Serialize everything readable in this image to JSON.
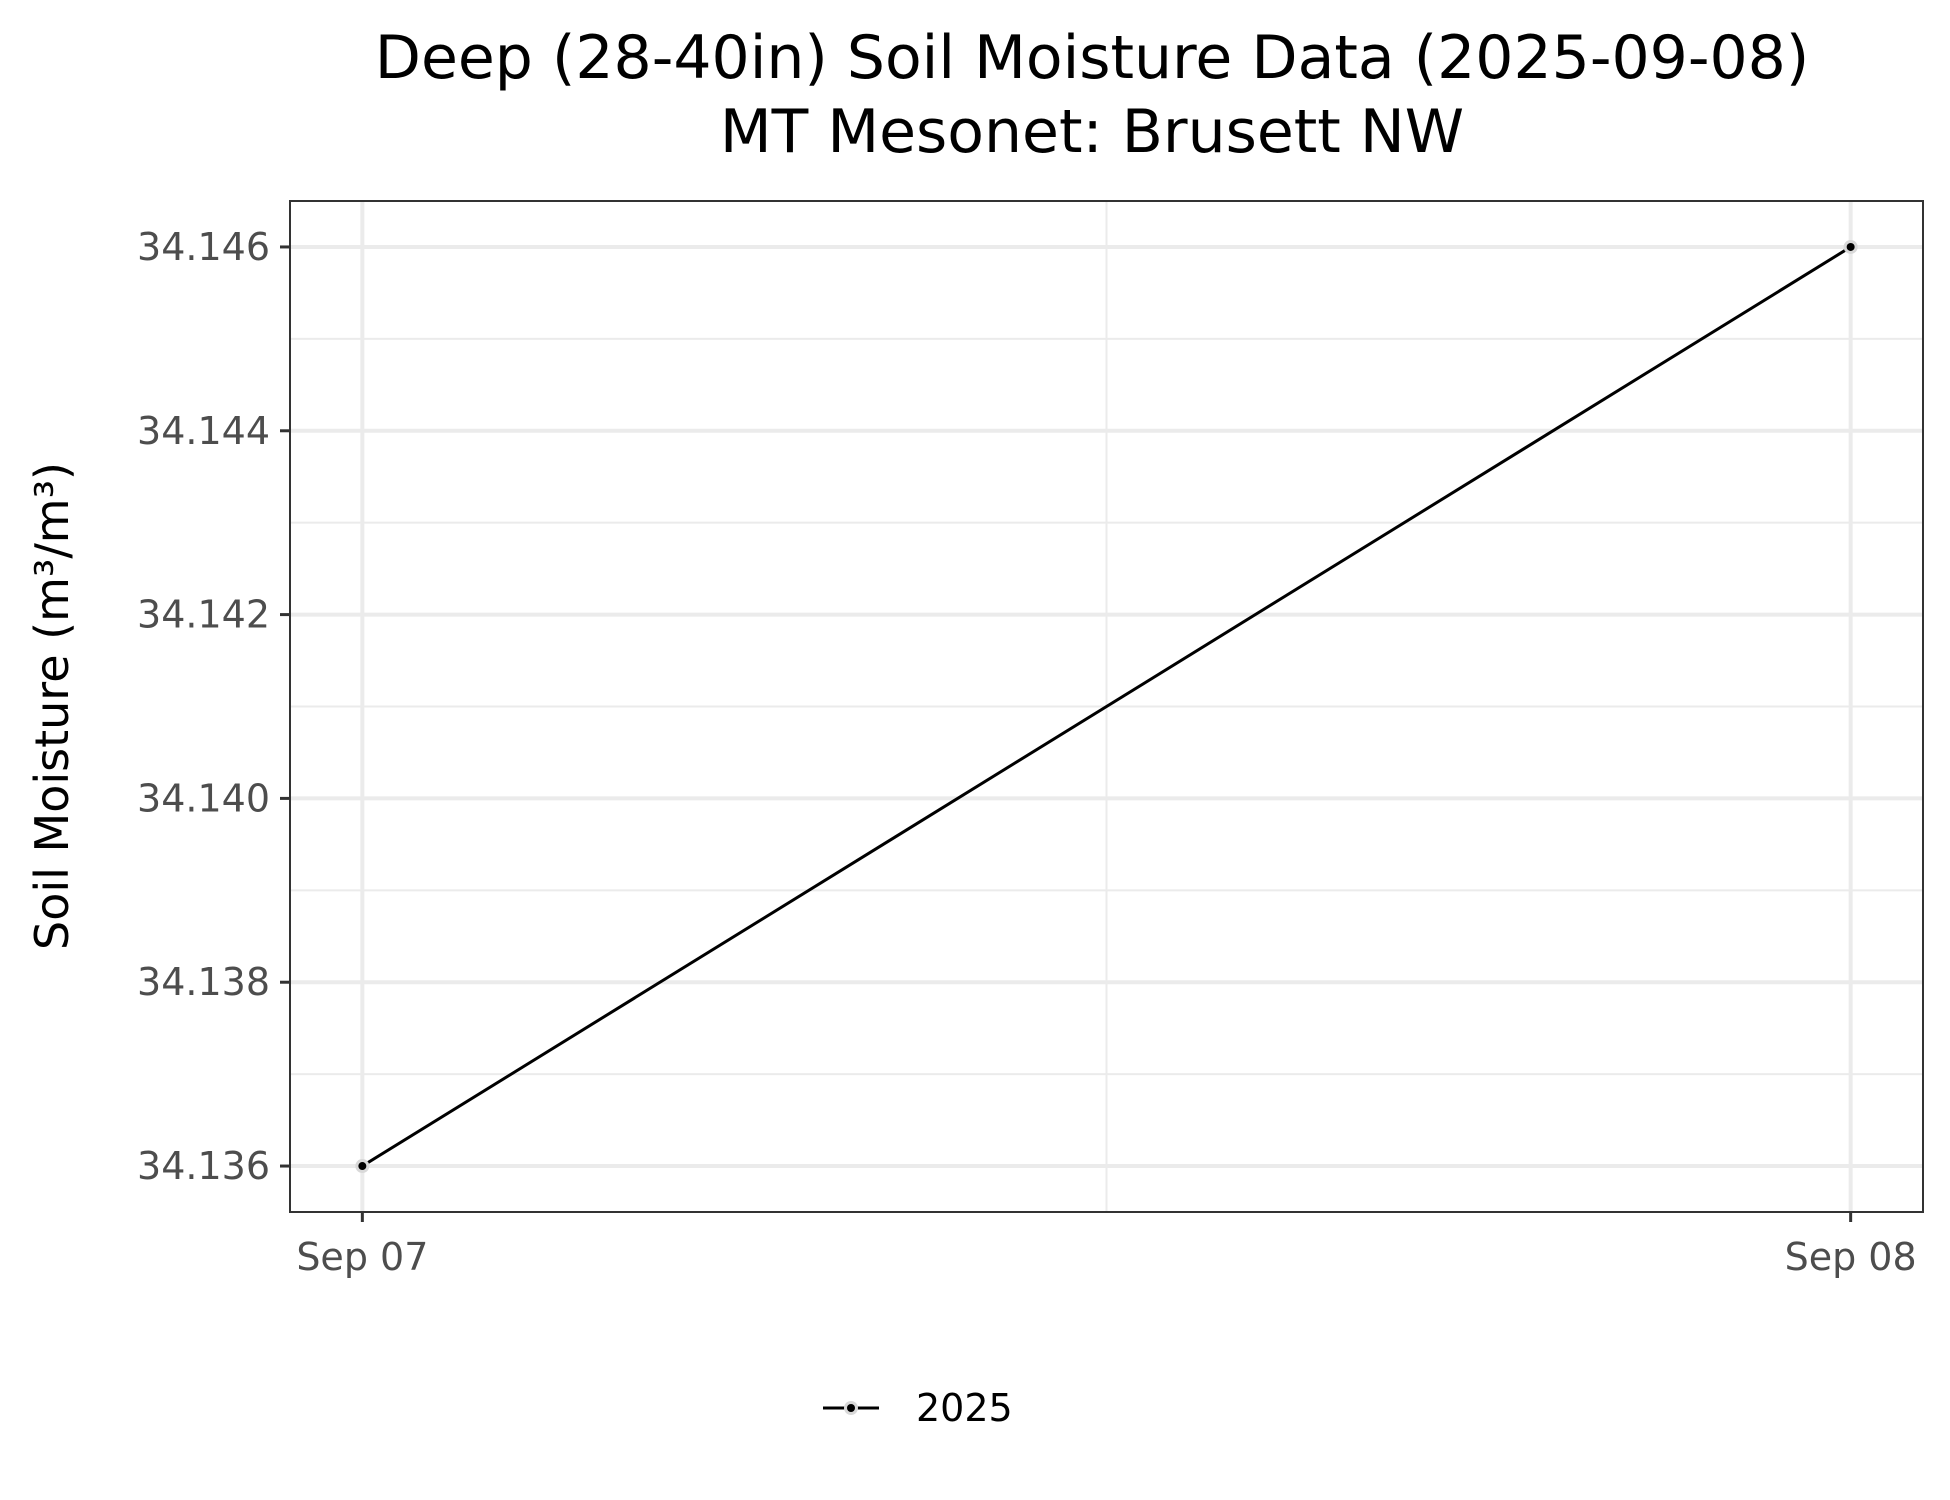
{
  "chart_data": {
    "type": "line",
    "title": "Deep (28-40in) Soil Moisture Data (2025-09-08)",
    "subtitle": "MT Mesonet: Brusett NW",
    "xlabel": "",
    "ylabel": "Soil Moisture (m³/m³)",
    "x_tick_labels": [
      "Sep 07",
      "Sep 08"
    ],
    "x_ticks": [
      "2025-09-07",
      "2025-09-08"
    ],
    "xlim": [
      "2025-09-06T22:50",
      "2025-09-08T01:10"
    ],
    "y_ticks": [
      34.136,
      34.138,
      34.14,
      34.142,
      34.144,
      34.146
    ],
    "y_tick_labels": [
      "34.136",
      "34.138",
      "34.140",
      "34.142",
      "34.144",
      "34.146"
    ],
    "ylim": [
      34.1355,
      34.1465
    ],
    "grid": true,
    "legend_position": "bottom",
    "series": [
      {
        "name": "2025",
        "color": "#000000",
        "x": [
          "2025-09-07",
          "2025-09-08"
        ],
        "values": [
          34.136,
          34.146
        ]
      }
    ]
  }
}
